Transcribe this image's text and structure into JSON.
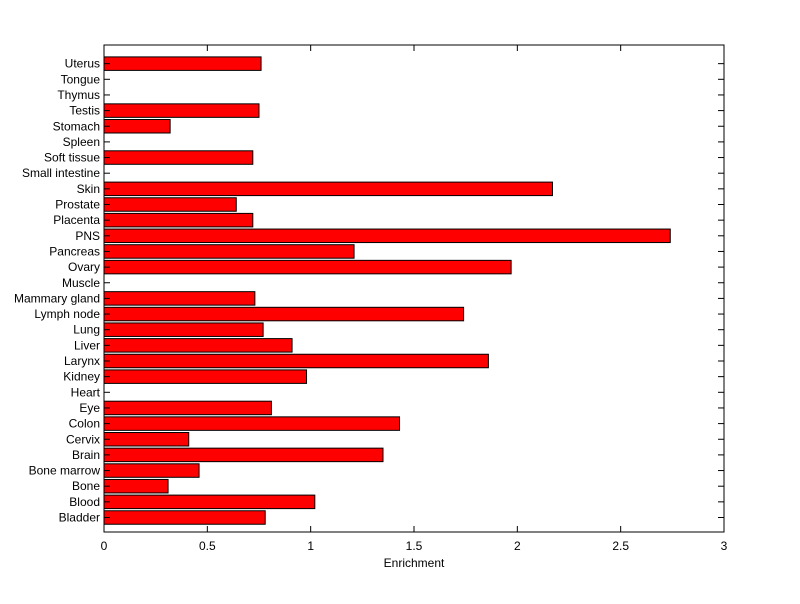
{
  "chart_data": {
    "type": "bar",
    "orientation": "horizontal",
    "categories": [
      "Bladder",
      "Blood",
      "Bone",
      "Bone marrow",
      "Brain",
      "Cervix",
      "Colon",
      "Eye",
      "Heart",
      "Kidney",
      "Larynx",
      "Liver",
      "Lung",
      "Lymph node",
      "Mammary gland",
      "Muscle",
      "Ovary",
      "Pancreas",
      "PNS",
      "Placenta",
      "Prostate",
      "Skin",
      "Small intestine",
      "Soft tissue",
      "Spleen",
      "Stomach",
      "Testis",
      "Thymus",
      "Tongue",
      "Uterus"
    ],
    "values": [
      0.78,
      1.02,
      0.31,
      0.46,
      1.35,
      0.41,
      1.43,
      0.81,
      0,
      0.98,
      1.86,
      0.91,
      0.77,
      1.74,
      0.73,
      0,
      1.97,
      1.21,
      2.74,
      0.72,
      0.64,
      2.17,
      0,
      0.72,
      0,
      0.32,
      0.75,
      0,
      0,
      0.76
    ],
    "xlabel": "Enrichment",
    "ylabel": "",
    "title": "",
    "xlim": [
      0,
      3
    ],
    "xticks": [
      "0",
      "0.5",
      "1",
      "1.5",
      "2",
      "2.5",
      "3"
    ],
    "bar_color": "#ff0000",
    "grid": false,
    "legend": "none"
  }
}
